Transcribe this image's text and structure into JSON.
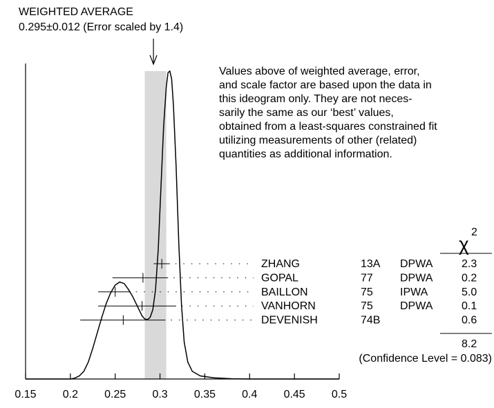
{
  "chart_data": {
    "type": "ideogram",
    "title": "WEIGHTED AVERAGE",
    "subtitle": "0.295±0.012 (Error scaled by 1.4)",
    "weighted_average": 0.295,
    "error": 0.012,
    "scale_factor": 1.4,
    "xlim": [
      0.15,
      0.5
    ],
    "x_ticks": [
      {
        "value": 0.15,
        "label": "0.15"
      },
      {
        "value": 0.2,
        "label": "0.2"
      },
      {
        "value": 0.25,
        "label": "0.25"
      },
      {
        "value": 0.3,
        "label": "0.3"
      },
      {
        "value": 0.35,
        "label": "0.35"
      },
      {
        "value": 0.4,
        "label": "0.4"
      },
      {
        "value": 0.45,
        "label": "0.45"
      },
      {
        "value": 0.5,
        "label": "0.5"
      }
    ],
    "note": [
      "Values above of weighted average, error,",
      "and scale factor are based upon the data in",
      "this ideogram only.  They are not neces-",
      "sarily the same as our ‘best’ values,",
      "obtained from a least-squares constrained fit",
      "utilizing measurements of other (related)",
      "quantities as additional information."
    ],
    "chi2_header": "χ",
    "chi2_exponent": "2",
    "measurements": [
      {
        "author": "ZHANG",
        "year": "13A",
        "tech": "DPWA",
        "chi2": "2.3",
        "value": 0.302,
        "low": 0.293,
        "high": 0.311
      },
      {
        "author": "GOPAL",
        "year": "77",
        "tech": "DPWA",
        "chi2": "0.2",
        "value": 0.281,
        "low": 0.247,
        "high": 0.309
      },
      {
        "author": "BAILLON",
        "year": "75",
        "tech": "IPWA",
        "chi2": "5.0",
        "value": 0.25,
        "low": 0.231,
        "high": 0.267
      },
      {
        "author": "VANHORN",
        "year": "75",
        "tech": "DPWA",
        "chi2": "0.1",
        "value": 0.28,
        "low": 0.231,
        "high": 0.318
      },
      {
        "author": "DEVENISH",
        "year": "74B",
        "tech": "",
        "chi2": "0.6",
        "value": 0.259,
        "low": 0.211,
        "high": 0.306
      }
    ],
    "chi2_total": "8.2",
    "confidence_level": "(Confidence Level = 0.083)",
    "curve": [
      [
        0.15,
        0.0
      ],
      [
        0.2,
        0.0
      ],
      [
        0.205,
        0.003
      ],
      [
        0.21,
        0.01
      ],
      [
        0.215,
        0.025
      ],
      [
        0.22,
        0.055
      ],
      [
        0.225,
        0.1
      ],
      [
        0.23,
        0.15
      ],
      [
        0.235,
        0.2
      ],
      [
        0.24,
        0.245
      ],
      [
        0.245,
        0.28
      ],
      [
        0.25,
        0.305
      ],
      [
        0.255,
        0.315
      ],
      [
        0.26,
        0.31
      ],
      [
        0.265,
        0.29
      ],
      [
        0.27,
        0.265
      ],
      [
        0.275,
        0.235
      ],
      [
        0.28,
        0.205
      ],
      [
        0.283,
        0.195
      ],
      [
        0.286,
        0.193
      ],
      [
        0.289,
        0.2
      ],
      [
        0.292,
        0.225
      ],
      [
        0.295,
        0.29
      ],
      [
        0.298,
        0.42
      ],
      [
        0.301,
        0.62
      ],
      [
        0.304,
        0.82
      ],
      [
        0.307,
        0.95
      ],
      [
        0.309,
        0.995
      ],
      [
        0.311,
        1.0
      ],
      [
        0.313,
        0.975
      ],
      [
        0.315,
        0.89
      ],
      [
        0.318,
        0.69
      ],
      [
        0.321,
        0.44
      ],
      [
        0.324,
        0.24
      ],
      [
        0.327,
        0.12
      ],
      [
        0.331,
        0.055
      ],
      [
        0.336,
        0.025
      ],
      [
        0.345,
        0.01
      ],
      [
        0.36,
        0.004
      ],
      [
        0.38,
        0.001
      ],
      [
        0.4,
        0.0
      ],
      [
        0.45,
        0.0
      ],
      [
        0.5,
        0.0
      ]
    ]
  }
}
